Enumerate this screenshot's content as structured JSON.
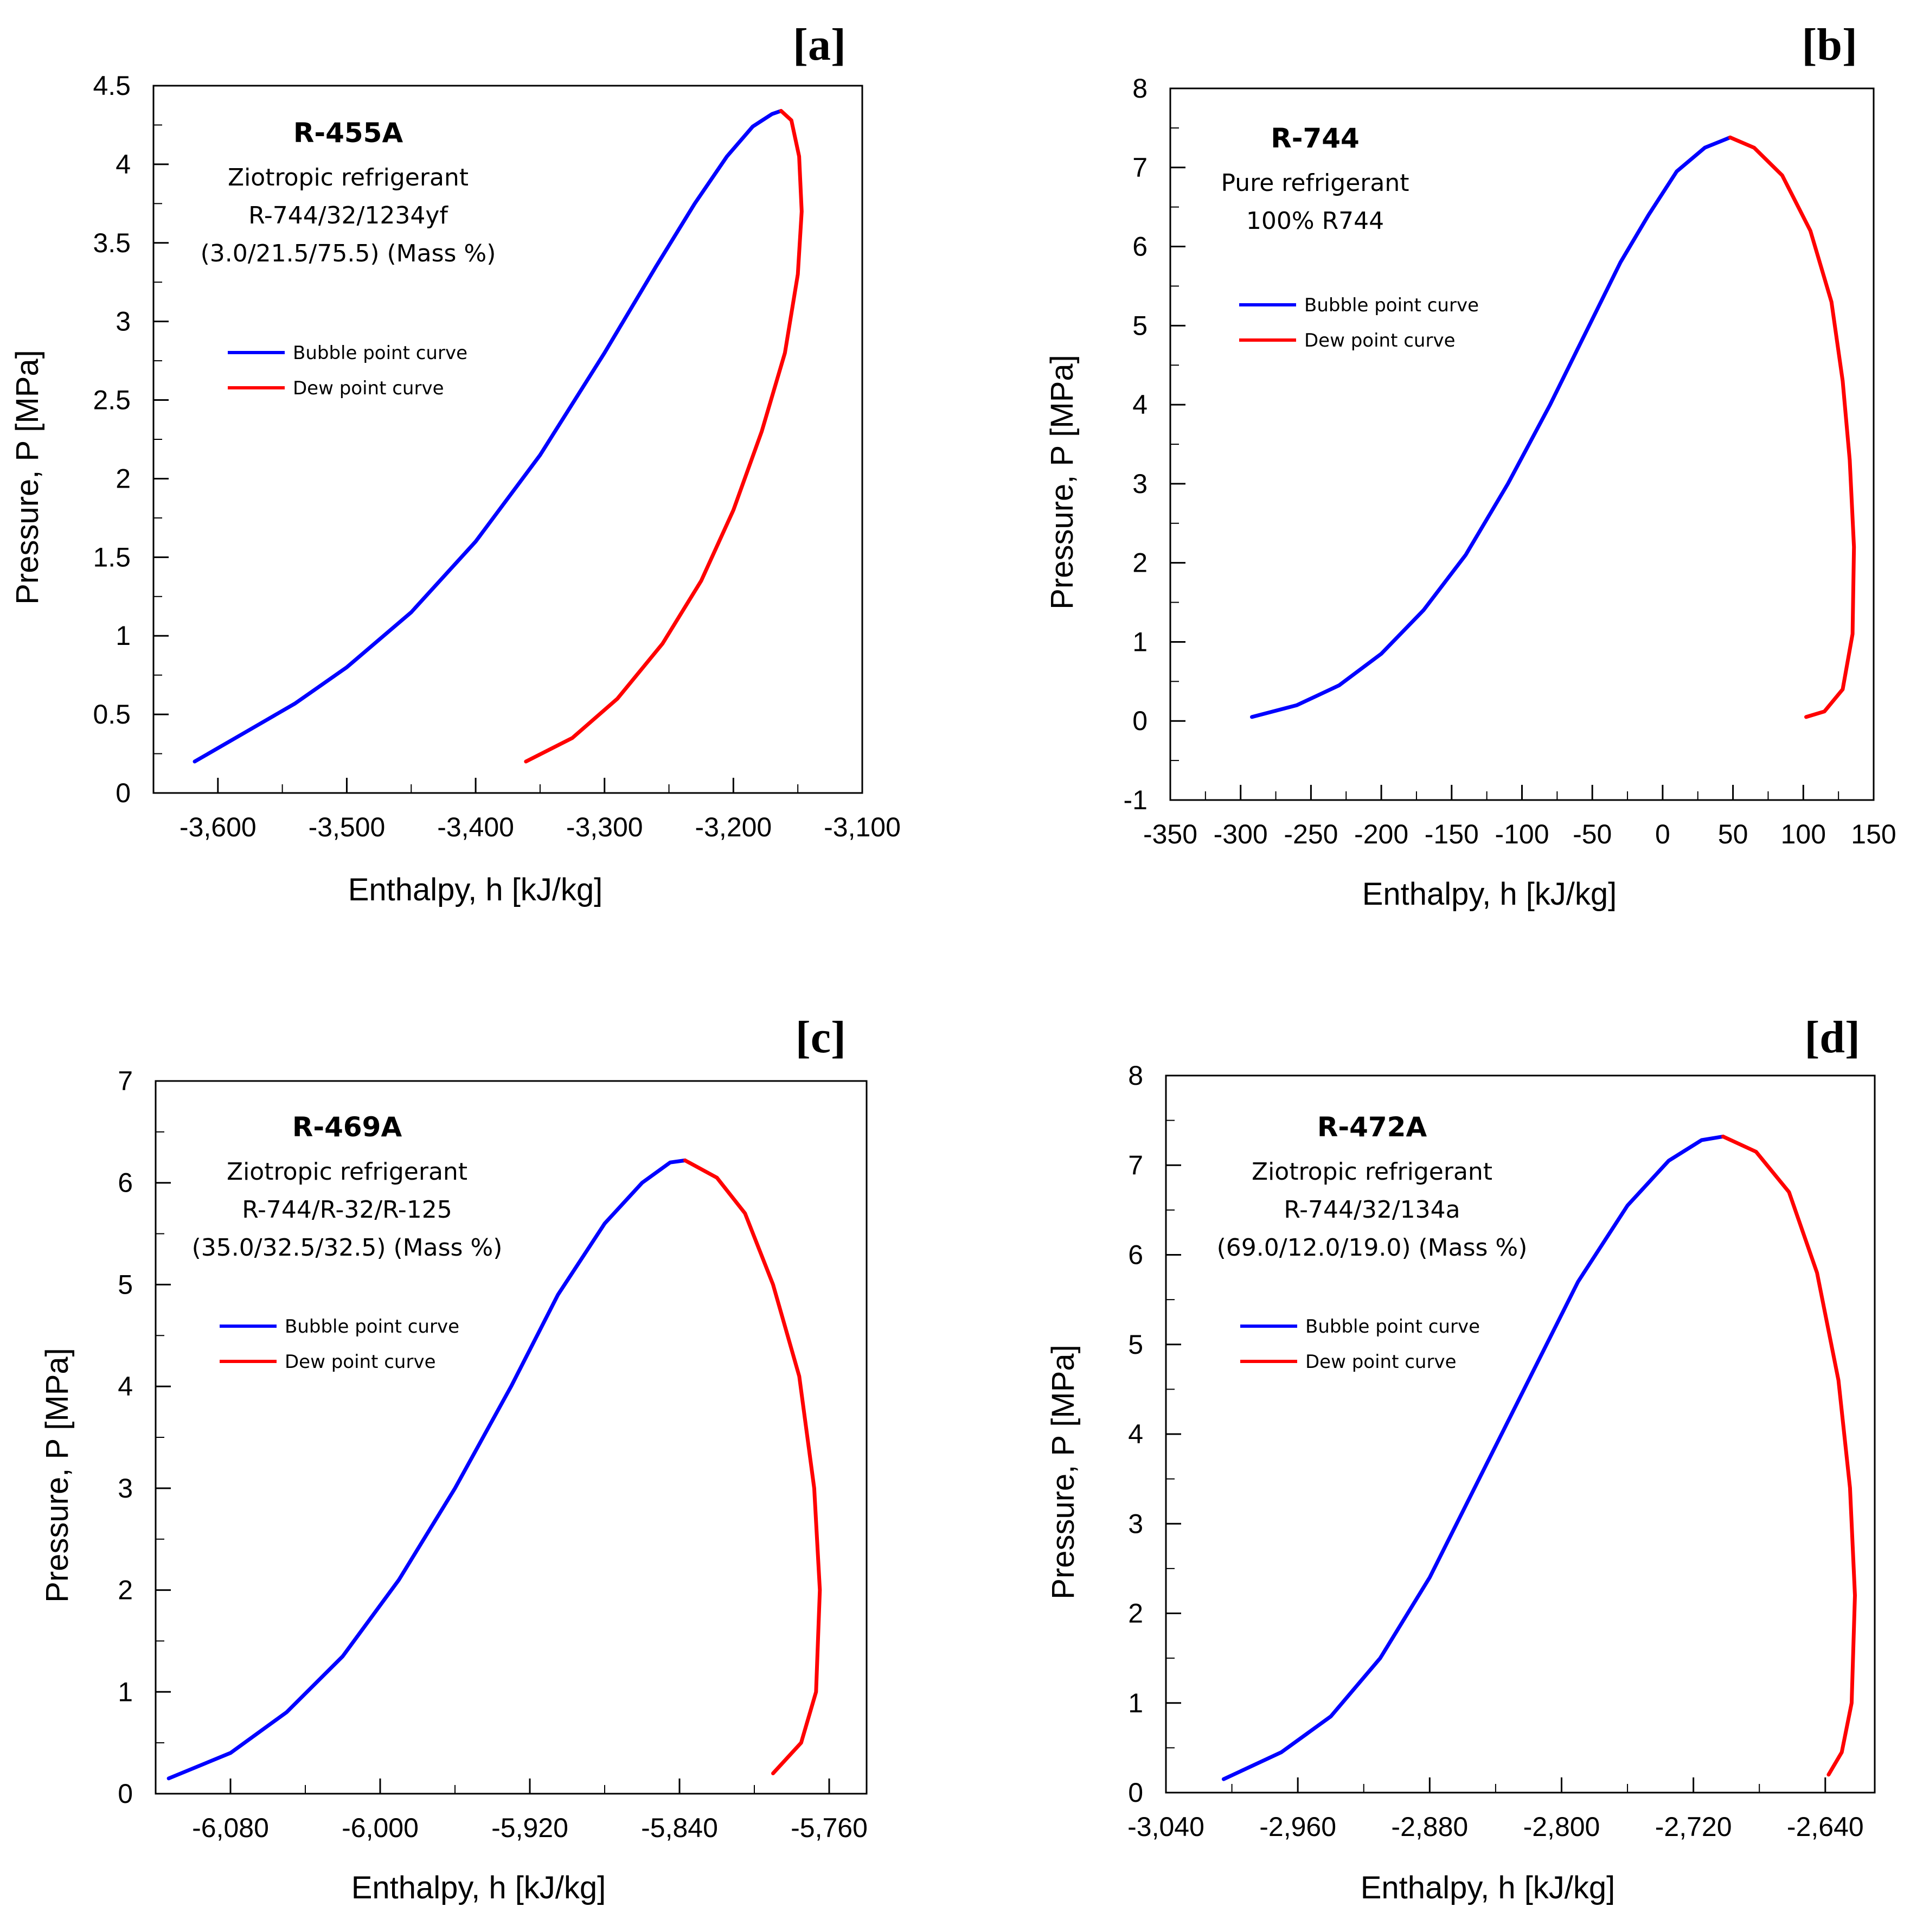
{
  "chart_data": [
    {
      "type": "line",
      "panel": "[a]",
      "refrigerant": "R-455A",
      "annotation": [
        "Ziotropic refrigerant",
        "R-744/32/1234yf",
        "(3.0/21.5/75.5) (Mass %)"
      ],
      "xlabel": "Enthalpy, h [kJ/kg]",
      "ylabel": "Pressure, P [MPa]",
      "xlim": [
        -3650,
        -3100
      ],
      "ylim": [
        0,
        4.5
      ],
      "xticks": [
        -3600,
        -3500,
        -3400,
        -3300,
        -3200,
        -3100
      ],
      "xtick_labels": [
        "-3,600",
        "-3,500",
        "-3,400",
        "-3,300",
        "-3,200",
        "-3,100"
      ],
      "yticks": [
        0,
        0.5,
        1,
        1.5,
        2,
        2.5,
        3,
        3.5,
        4,
        4.5
      ],
      "ytick_labels": [
        "0",
        "0.5",
        "1",
        "1.5",
        "2",
        "2.5",
        "3",
        "3.5",
        "4",
        "4.5"
      ],
      "series": [
        {
          "name": "Bubble point curve",
          "color": "#0000ff",
          "x": [
            -3618,
            -3580,
            -3540,
            -3500,
            -3450,
            -3400,
            -3350,
            -3300,
            -3260,
            -3230,
            -3205,
            -3185,
            -3170,
            -3163
          ],
          "y": [
            0.2,
            0.38,
            0.57,
            0.8,
            1.15,
            1.6,
            2.15,
            2.8,
            3.35,
            3.75,
            4.05,
            4.24,
            4.32,
            4.34
          ]
        },
        {
          "name": "Dew point curve",
          "color": "#ff0000",
          "x": [
            -3163,
            -3155,
            -3149,
            -3147,
            -3150,
            -3160,
            -3178,
            -3200,
            -3225,
            -3255,
            -3290,
            -3325,
            -3361
          ],
          "y": [
            4.34,
            4.28,
            4.05,
            3.7,
            3.3,
            2.8,
            2.3,
            1.8,
            1.35,
            0.95,
            0.6,
            0.35,
            0.2
          ]
        }
      ]
    },
    {
      "type": "line",
      "panel": "[b]",
      "refrigerant": "R-744",
      "annotation": [
        "Pure refrigerant",
        "100% R744"
      ],
      "xlabel": "Enthalpy, h [kJ/kg]",
      "ylabel": "Pressure, P [MPa]",
      "xlim": [
        -350,
        150
      ],
      "ylim": [
        -1,
        8
      ],
      "xticks": [
        -350,
        -300,
        -250,
        -200,
        -150,
        -100,
        -50,
        0,
        50,
        100,
        150
      ],
      "xtick_labels": [
        "-350",
        "-300",
        "-250",
        "-200",
        "-150",
        "-100",
        "-50",
        "0",
        "50",
        "100",
        "150"
      ],
      "yticks": [
        -1,
        0,
        1,
        2,
        3,
        4,
        5,
        6,
        7,
        8
      ],
      "ytick_labels": [
        "-1",
        "0",
        "1",
        "2",
        "3",
        "4",
        "5",
        "6",
        "7",
        "8"
      ],
      "series": [
        {
          "name": "Bubble point curve",
          "color": "#0000ff",
          "x": [
            -292,
            -260,
            -230,
            -200,
            -170,
            -140,
            -110,
            -80,
            -55,
            -30,
            -10,
            10,
            30,
            48
          ],
          "y": [
            0.05,
            0.2,
            0.45,
            0.85,
            1.4,
            2.1,
            3.0,
            4.0,
            4.9,
            5.8,
            6.4,
            6.95,
            7.25,
            7.38
          ]
        },
        {
          "name": "Dew point curve",
          "color": "#ff0000",
          "x": [
            48,
            65,
            85,
            105,
            120,
            128,
            133,
            136,
            135,
            128,
            115,
            102
          ],
          "y": [
            7.38,
            7.25,
            6.9,
            6.2,
            5.3,
            4.3,
            3.3,
            2.2,
            1.1,
            0.4,
            0.12,
            0.05
          ]
        }
      ]
    },
    {
      "type": "line",
      "panel": "[c]",
      "refrigerant": "R-469A",
      "annotation": [
        "Ziotropic refrigerant",
        "R-744/R-32/R-125",
        "(35.0/32.5/32.5) (Mass %)"
      ],
      "xlabel": "Enthalpy, h [kJ/kg]",
      "ylabel": "Pressure, P [MPa]",
      "xlim": [
        -6120,
        -5740
      ],
      "ylim": [
        0,
        7
      ],
      "xticks": [
        -6080,
        -6000,
        -5920,
        -5840,
        -5760
      ],
      "xtick_labels": [
        "-6,080",
        "-6,000",
        "-5,920",
        "-5,840",
        "-5,760"
      ],
      "yticks": [
        0,
        1,
        2,
        3,
        4,
        5,
        6,
        7
      ],
      "ytick_labels": [
        "0",
        "1",
        "2",
        "3",
        "4",
        "5",
        "6",
        "7"
      ],
      "series": [
        {
          "name": "Bubble point curve",
          "color": "#0000ff",
          "x": [
            -6113,
            -6080,
            -6050,
            -6020,
            -5990,
            -5960,
            -5930,
            -5905,
            -5880,
            -5860,
            -5845,
            -5837
          ],
          "y": [
            0.15,
            0.4,
            0.8,
            1.35,
            2.1,
            3.0,
            4.0,
            4.9,
            5.6,
            6.0,
            6.2,
            6.22
          ]
        },
        {
          "name": "Dew point curve",
          "color": "#ff0000",
          "x": [
            -5837,
            -5820,
            -5805,
            -5790,
            -5776,
            -5768,
            -5765,
            -5767,
            -5775,
            -5790
          ],
          "y": [
            6.22,
            6.05,
            5.7,
            5.0,
            4.1,
            3.0,
            2.0,
            1.0,
            0.5,
            0.2
          ]
        }
      ]
    },
    {
      "type": "line",
      "panel": "[d]",
      "refrigerant": "R-472A",
      "annotation": [
        "Ziotropic refrigerant",
        "R-744/32/134a",
        "(69.0/12.0/19.0) (Mass %)"
      ],
      "xlabel": "Enthalpy, h [kJ/kg]",
      "ylabel": "Pressure, P [MPa]",
      "xlim": [
        -3040,
        -2610
      ],
      "ylim": [
        0,
        8
      ],
      "xticks": [
        -3040,
        -2960,
        -2880,
        -2800,
        -2720,
        -2640
      ],
      "xtick_labels": [
        "-3,040",
        "-2,960",
        "-2,880",
        "-2,800",
        "-2,720",
        "-2,640"
      ],
      "yticks": [
        0,
        1,
        2,
        3,
        4,
        5,
        6,
        7,
        8
      ],
      "ytick_labels": [
        "0",
        "1",
        "2",
        "3",
        "4",
        "5",
        "6",
        "7",
        "8"
      ],
      "series": [
        {
          "name": "Bubble point curve",
          "color": "#0000ff",
          "x": [
            -3005,
            -2970,
            -2940,
            -2910,
            -2880,
            -2850,
            -2820,
            -2790,
            -2760,
            -2735,
            -2715,
            -2702
          ],
          "y": [
            0.15,
            0.45,
            0.85,
            1.5,
            2.4,
            3.5,
            4.6,
            5.7,
            6.55,
            7.05,
            7.28,
            7.32
          ]
        },
        {
          "name": "Dew point curve",
          "color": "#ff0000",
          "x": [
            -2702,
            -2682,
            -2662,
            -2645,
            -2632,
            -2625,
            -2622,
            -2624,
            -2630,
            -2638
          ],
          "y": [
            7.32,
            7.15,
            6.7,
            5.8,
            4.6,
            3.4,
            2.2,
            1.0,
            0.45,
            0.2
          ]
        }
      ]
    }
  ]
}
